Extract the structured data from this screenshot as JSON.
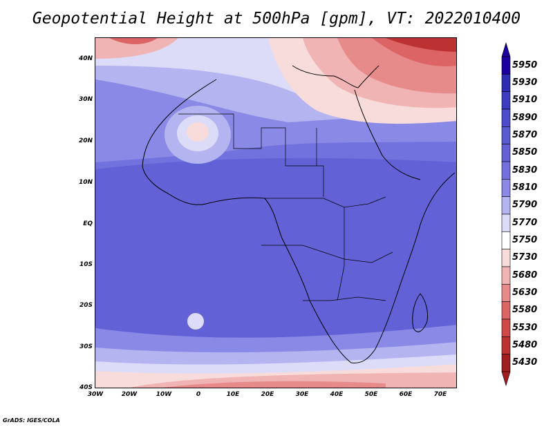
{
  "title": "Geopotential Height at 500hPa [gpm], VT: 2022010400",
  "credit": "GrADS: IGES/COLA",
  "lat_labels": [
    "40N",
    "30N",
    "20N",
    "10N",
    "EQ",
    "10S",
    "20S",
    "30S",
    "40S"
  ],
  "lon_labels": [
    "30W",
    "20W",
    "10W",
    "0",
    "10E",
    "20E",
    "30E",
    "40E",
    "50E",
    "60E",
    "70E"
  ],
  "colorbar": {
    "levels": [
      "5950",
      "5930",
      "5910",
      "5890",
      "5870",
      "5850",
      "5830",
      "5810",
      "5790",
      "5770",
      "5750",
      "5730",
      "5680",
      "5630",
      "5580",
      "5530",
      "5480",
      "5430"
    ],
    "colors": [
      "#1e00a0",
      "#2e2eb4",
      "#3c3cc2",
      "#4c4ccc",
      "#5a5ad2",
      "#6262d6",
      "#7272de",
      "#8a8ae6",
      "#b4b4f0",
      "#dcdcf8",
      "#ffffff",
      "#f8dcdc",
      "#f0b4b4",
      "#e68a8a",
      "#dc6464",
      "#d04848",
      "#bc3232",
      "#a01e1e"
    ]
  },
  "chart_data": {
    "type": "heatmap",
    "variable": "Geopotential Height at 500hPa",
    "units": "gpm",
    "valid_time": "2022010400",
    "lon_range": [
      -30,
      75
    ],
    "lat_range": [
      -40,
      45
    ],
    "color_levels": [
      5430,
      5480,
      5530,
      5580,
      5630,
      5680,
      5730,
      5750,
      5770,
      5790,
      5810,
      5830,
      5850,
      5870,
      5890,
      5910,
      5930,
      5950
    ]
  }
}
